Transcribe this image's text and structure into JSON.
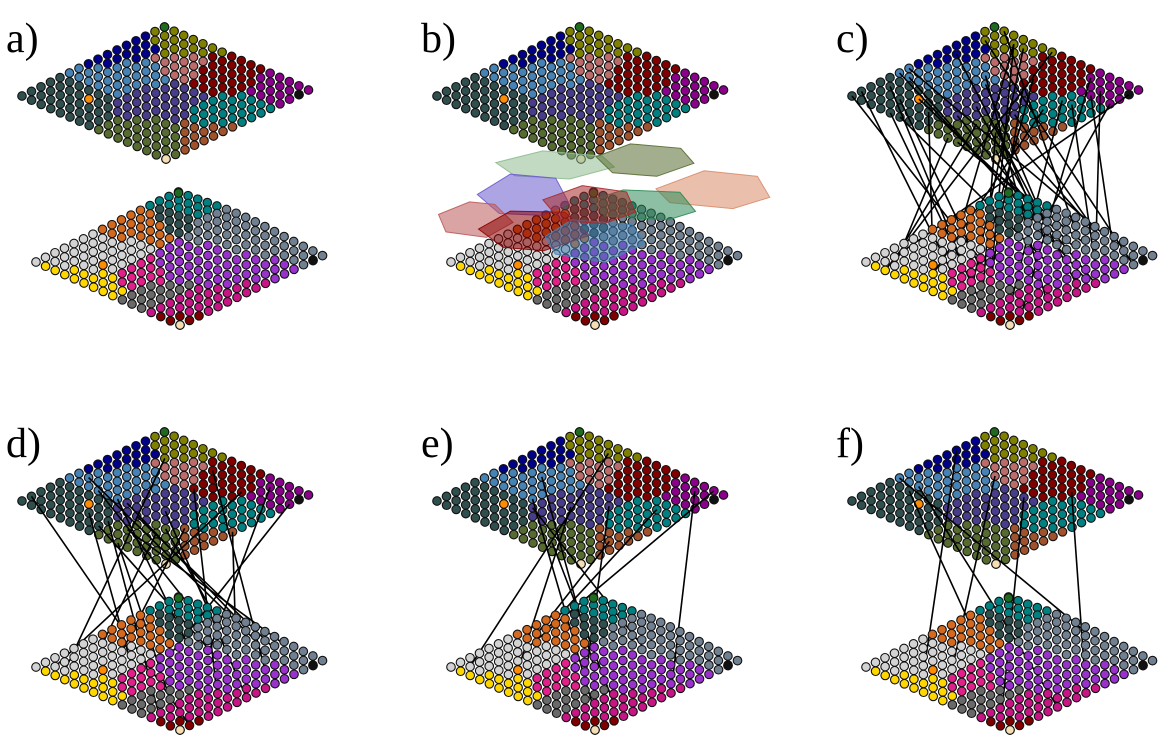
{
  "panels": [
    {
      "label": "a)",
      "variant": "plain"
    },
    {
      "label": "b)",
      "variant": "hulls"
    },
    {
      "label": "c)",
      "variant": "links",
      "link_count": 40
    },
    {
      "label": "d)",
      "variant": "links",
      "link_count": 22
    },
    {
      "label": "e)",
      "variant": "links",
      "link_count": 11
    },
    {
      "label": "f)",
      "variant": "links",
      "link_count": 7
    }
  ],
  "layers": {
    "top": {
      "name": "top-lattice",
      "region_colors": [
        "#2f4f4f",
        "#556b2f",
        "#483d8b",
        "#4682b4",
        "#00008b",
        "#800000",
        "#bc6b6b",
        "#008080",
        "#808000",
        "#a0522d",
        "#8b008b"
      ]
    },
    "bottom": {
      "name": "bottom-lattice",
      "region_colors": [
        "#008080",
        "#2f4f4f",
        "#9932cc",
        "#e0218a",
        "#696969",
        "#d2691e",
        "#d3d3d3",
        "#ffd700",
        "#708090",
        "#c71585",
        "#800000"
      ]
    }
  },
  "hull_colors": [
    "#8fbc8f",
    "#556b2f",
    "#6a5acd",
    "#bc5a5a",
    "#8b0000",
    "#4682b4",
    "#d98c6a",
    "#2e8b57",
    "#a52a2a"
  ]
}
